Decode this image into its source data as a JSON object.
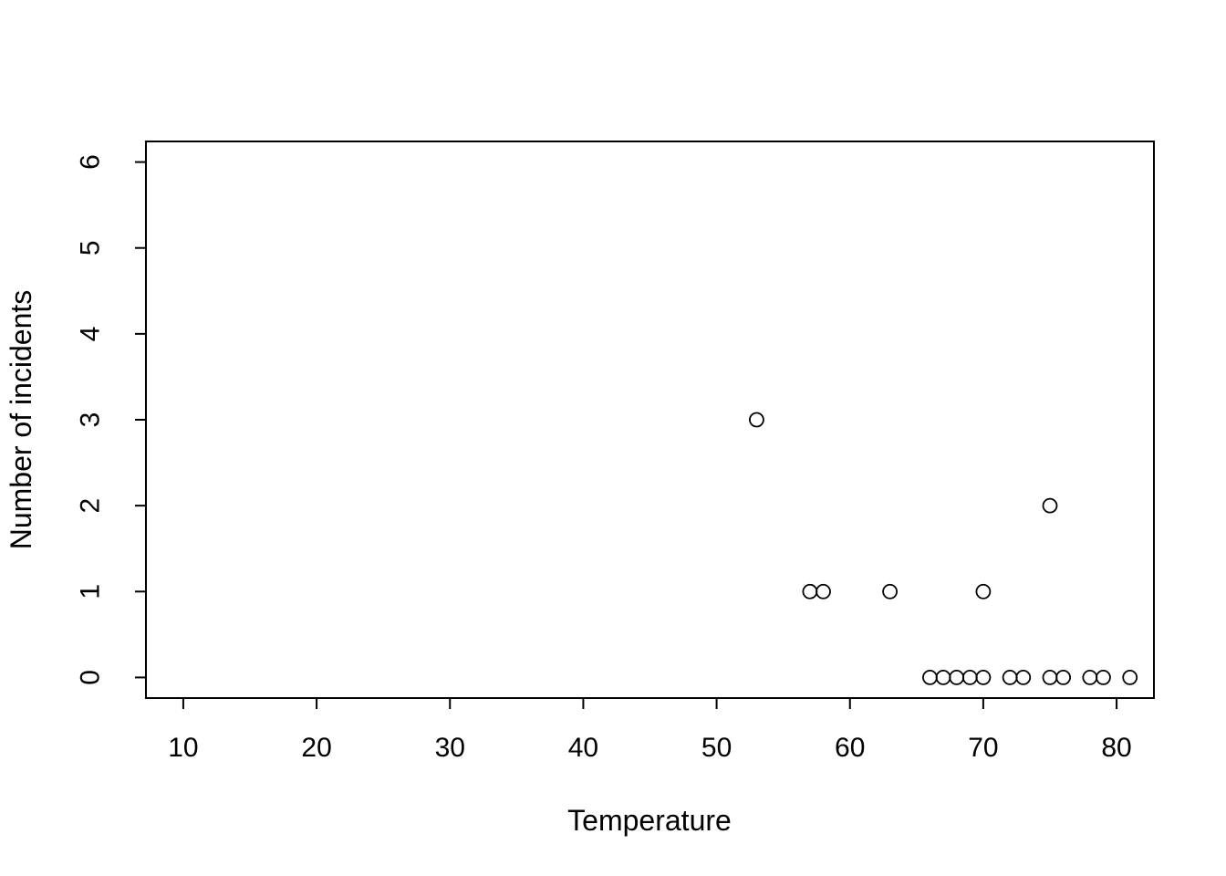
{
  "figure": {
    "background": "#ffffff",
    "foreground": "#000000"
  },
  "chart_data": {
    "type": "scatter",
    "title": "",
    "xlabel": "Temperature",
    "ylabel": "Number of incidents",
    "marker": "open-circle",
    "grid": false,
    "legend": false,
    "x_ticks": [
      10,
      20,
      30,
      40,
      50,
      60,
      70,
      80
    ],
    "y_ticks": [
      0,
      1,
      2,
      3,
      4,
      5,
      6
    ],
    "xlim": [
      7.2,
      82.8
    ],
    "ylim": [
      -0.24,
      6.24
    ],
    "points": [
      {
        "x": 53,
        "y": 3
      },
      {
        "x": 57,
        "y": 1
      },
      {
        "x": 58,
        "y": 1
      },
      {
        "x": 63,
        "y": 1
      },
      {
        "x": 70,
        "y": 1
      },
      {
        "x": 75,
        "y": 2
      },
      {
        "x": 66,
        "y": 0
      },
      {
        "x": 67,
        "y": 0
      },
      {
        "x": 68,
        "y": 0
      },
      {
        "x": 69,
        "y": 0
      },
      {
        "x": 70,
        "y": 0
      },
      {
        "x": 72,
        "y": 0
      },
      {
        "x": 73,
        "y": 0
      },
      {
        "x": 75,
        "y": 0
      },
      {
        "x": 76,
        "y": 0
      },
      {
        "x": 78,
        "y": 0
      },
      {
        "x": 79,
        "y": 0
      },
      {
        "x": 81,
        "y": 0
      }
    ]
  }
}
